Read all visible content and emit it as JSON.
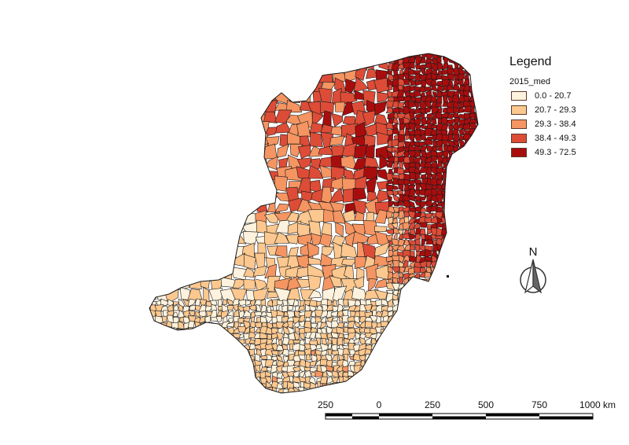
{
  "legend": {
    "title": "Legend",
    "field": "2015_med",
    "classes": [
      {
        "label": "0.0 - 20.7",
        "color": "#fdf2dd"
      },
      {
        "label": "20.7 - 29.3",
        "color": "#fcc88f"
      },
      {
        "label": "29.3 - 38.4",
        "color": "#f59562"
      },
      {
        "label": "38.4 - 49.3",
        "color": "#dd4c37"
      },
      {
        "label": "49.3 - 72.5",
        "color": "#a80d0d"
      }
    ]
  },
  "north_arrow": {
    "letter": "N"
  },
  "scale_bar": {
    "labels": [
      "250",
      "0",
      "250",
      "500",
      "750",
      "1000 km"
    ]
  },
  "colors": {
    "border": "#1a1a1a",
    "background": "#ffffff"
  }
}
